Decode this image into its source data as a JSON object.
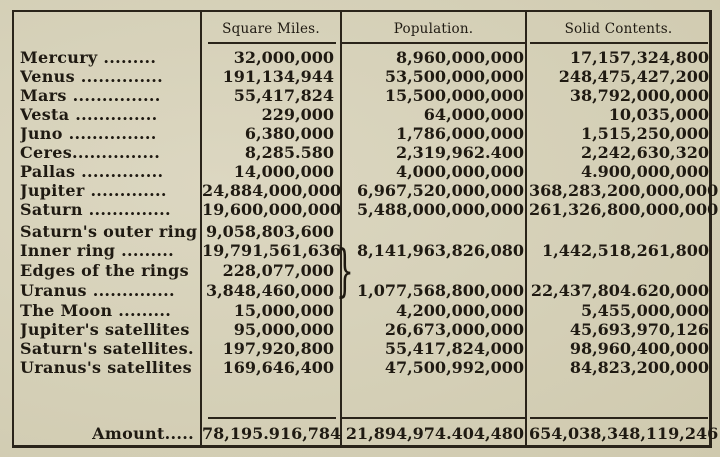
{
  "table": {
    "headers": [
      "",
      "Square Miles.",
      "Population.",
      "Solid Contents."
    ],
    "rows": [
      {
        "name": "Mercury .........",
        "square_miles": "32,000,000",
        "population": "8,960,000,000",
        "solid_contents": "17,157,324,800"
      },
      {
        "name": "Venus ..............",
        "square_miles": "191,134,944",
        "population": "53,500,000,000",
        "solid_contents": "248,475,427,200"
      },
      {
        "name": "Mars ...............",
        "square_miles": "55,417,824",
        "population": "15,500,000,000",
        "solid_contents": "38,792,000,000"
      },
      {
        "name": "Vesta ..............",
        "square_miles": "229,000",
        "population": "64,000,000",
        "solid_contents": "10,035,000"
      },
      {
        "name": "Juno ...............",
        "square_miles": "6,380,000",
        "population": "1,786,000,000",
        "solid_contents": "1,515,250,000"
      },
      {
        "name": "Ceres...............",
        "square_miles": "8,285.580",
        "population": "2,319,962.400",
        "solid_contents": "2,242,630,320"
      },
      {
        "name": "Pallas ..............",
        "square_miles": "14,000,000",
        "population": "4,000,000,000",
        "solid_contents": "4.900,000,000"
      },
      {
        "name": "Jupiter .............",
        "square_miles": "24,884,000,000",
        "population": "6,967,520,000,000",
        "solid_contents": "368,283,200,000,000"
      },
      {
        "name": "Saturn ..............",
        "square_miles": "19,600,000,000",
        "population": "5,488,000,000,000",
        "solid_contents": "261,326,800,000,000"
      },
      {
        "name": "Saturn's outer ring",
        "square_miles": "9,058,803,600",
        "population": "",
        "solid_contents": ""
      },
      {
        "name": "Inner ring .........",
        "square_miles": "19,791,561,636",
        "population": "8,141,963,826,080",
        "solid_contents": "1,442,518,261,800"
      },
      {
        "name": "Edges of the rings",
        "square_miles": "228,077,000",
        "population": "",
        "solid_contents": ""
      },
      {
        "name": "Uranus ..............",
        "square_miles": "3,848,460,000",
        "population": "1,077,568,800,000",
        "solid_contents": "22,437,804.620,000"
      },
      {
        "name": "The Moon .........",
        "square_miles": "15,000,000",
        "population": "4,200,000,000",
        "solid_contents": "5,455,000,000"
      },
      {
        "name": "Jupiter's satellites",
        "square_miles": "95,000,000",
        "population": "26,673,000,000",
        "solid_contents": "45,693,970,126"
      },
      {
        "name": "Saturn's satellites.",
        "square_miles": "197,920,800",
        "population": "55,417,824,000",
        "solid_contents": "98,960,400,000"
      },
      {
        "name": "Uranus's satellites",
        "square_miles": "169,646,400",
        "population": "47,500,992,000",
        "solid_contents": "84,823,200,000"
      }
    ],
    "total": {
      "name": "Amount.....",
      "square_miles": "78,195.916,784",
      "population": "21,894,974.404,480",
      "solid_contents": "654,038,348,119,246"
    },
    "brace_glyph": "}"
  }
}
